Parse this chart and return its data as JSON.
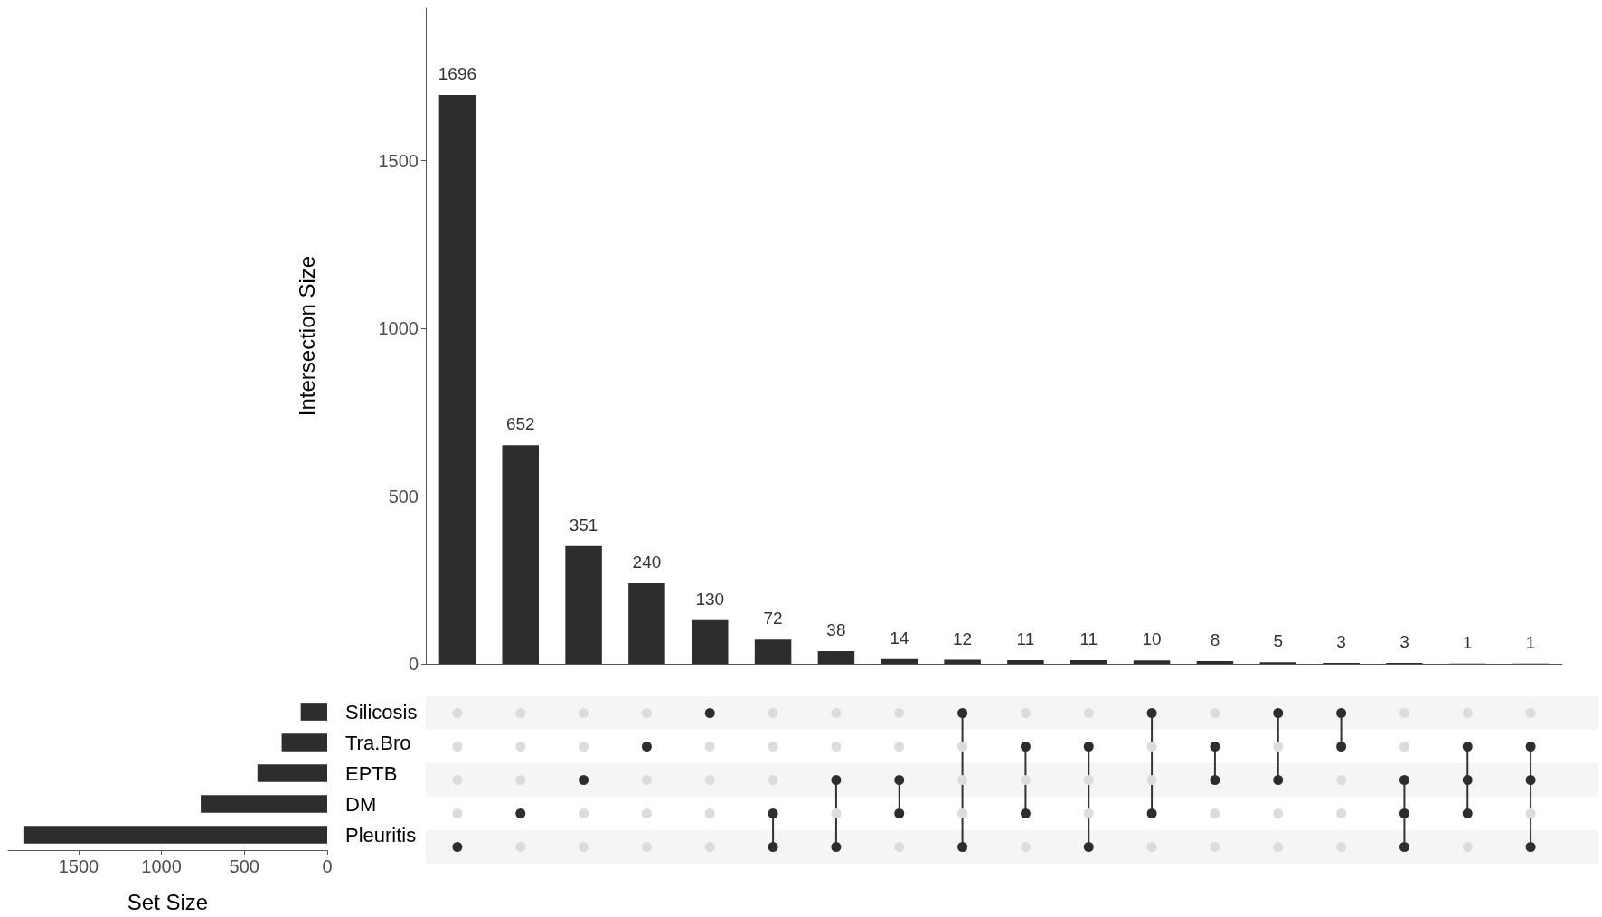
{
  "chart_data": [
    {
      "type": "bar",
      "ylabel": "Intersection Size",
      "categories": [
        null,
        null,
        null,
        null,
        null,
        null,
        null,
        null,
        null,
        null,
        null,
        null,
        null,
        null,
        null,
        null,
        null,
        null
      ],
      "values": [
        1696,
        652,
        351,
        240,
        130,
        72,
        38,
        14,
        12,
        11,
        11,
        10,
        8,
        5,
        3,
        3,
        1,
        1
      ],
      "color": "#2d2d2d",
      "ylim": [
        0,
        1955
      ],
      "yticks": [
        0,
        500,
        1000,
        1500
      ],
      "data_labels": true,
      "tick_labels": "y"
    },
    {
      "type": "bar",
      "orientation": "horizontal",
      "xlabel": "Set Size",
      "categories": [
        "Silicosis",
        "Tra.Bro",
        "EPTB",
        "DM",
        "Pleuritis"
      ],
      "values": [
        160,
        275,
        421,
        763,
        1833
      ],
      "color": "#2d2d2d",
      "xlim": [
        1925,
        0
      ],
      "xticks": [
        1500,
        1000,
        500,
        0
      ]
    }
  ]
}
